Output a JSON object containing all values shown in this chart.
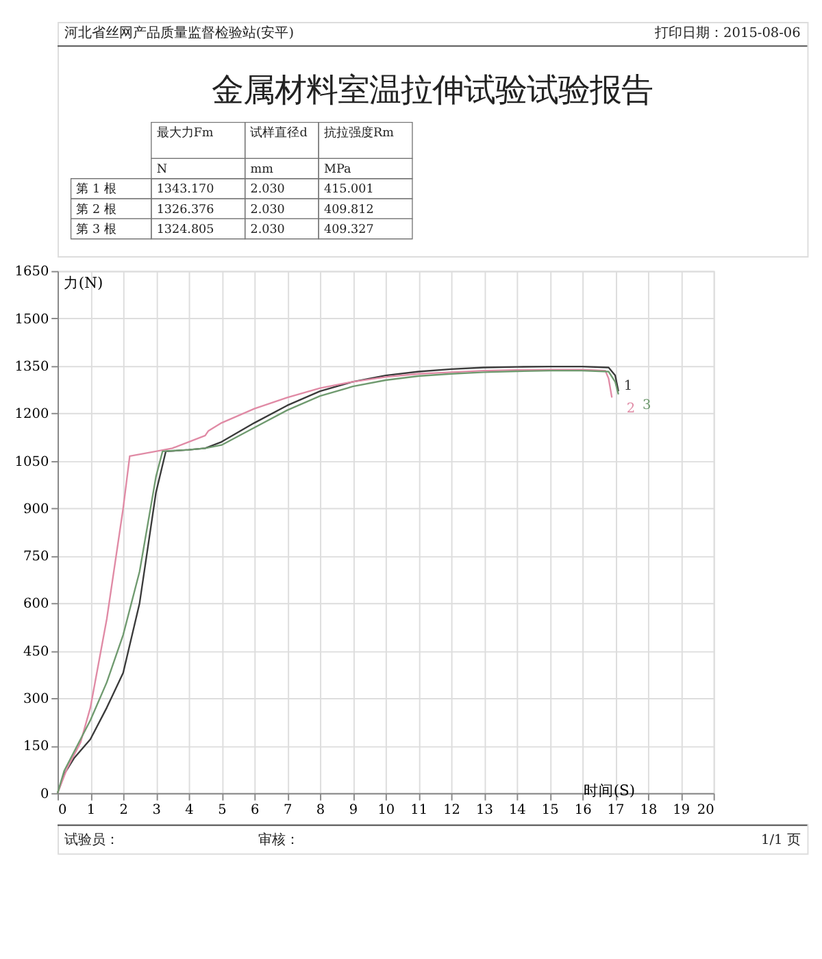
{
  "chart_data": {
    "type": "line",
    "title": "金属材料室温拉伸试验试验报告",
    "xlabel": "时间(S)",
    "ylabel": "力(N)",
    "xlim": [
      0,
      20
    ],
    "xticks": [
      0,
      1,
      2,
      3,
      4,
      5,
      6,
      7,
      8,
      9,
      10,
      11,
      12,
      13,
      14,
      15,
      16,
      17,
      18,
      19,
      20
    ],
    "ylim": [
      0,
      1650
    ],
    "yticks": [
      0,
      150,
      300,
      450,
      600,
      750,
      900,
      1050,
      1200,
      1350,
      1500,
      1650
    ],
    "grid": true,
    "legend": false,
    "marker": "none",
    "line_style": "solid",
    "series": [
      {
        "name": "1",
        "color": "#3a3a3a",
        "x": [
          0,
          0.2,
          0.5,
          1,
          1.5,
          2,
          2.5,
          3,
          3.3,
          4,
          4.5,
          5,
          6,
          7,
          8,
          9,
          10,
          11,
          12,
          13,
          14,
          15,
          16,
          16.8,
          17,
          17.1
        ],
        "values": [
          0,
          60,
          110,
          170,
          270,
          380,
          600,
          950,
          1080,
          1085,
          1090,
          1110,
          1170,
          1225,
          1270,
          1300,
          1320,
          1332,
          1340,
          1345,
          1347,
          1348,
          1348,
          1345,
          1320,
          1270
        ]
      },
      {
        "name": "2",
        "color": "#e08aa5",
        "x": [
          0,
          0.3,
          0.7,
          1,
          1.5,
          2,
          2.2,
          3,
          3.5,
          4.5,
          4.6,
          5,
          6,
          7,
          8,
          9,
          10,
          11,
          12,
          13,
          14,
          15,
          16,
          16.7,
          16.8,
          16.9
        ],
        "values": [
          0,
          80,
          160,
          270,
          550,
          900,
          1065,
          1080,
          1090,
          1130,
          1145,
          1170,
          1215,
          1250,
          1280,
          1300,
          1315,
          1325,
          1330,
          1335,
          1337,
          1338,
          1338,
          1335,
          1310,
          1250
        ]
      },
      {
        "name": "3",
        "color": "#6f9a6f",
        "x": [
          0,
          0.2,
          0.5,
          1,
          1.5,
          2,
          2.5,
          3,
          3.2,
          4,
          4.5,
          5,
          6,
          7,
          8,
          9,
          10,
          11,
          12,
          13,
          14,
          15,
          16,
          16.8,
          17,
          17.1
        ],
        "values": [
          0,
          70,
          130,
          230,
          350,
          500,
          700,
          1000,
          1080,
          1085,
          1090,
          1100,
          1155,
          1210,
          1255,
          1285,
          1305,
          1318,
          1325,
          1330,
          1333,
          1335,
          1335,
          1332,
          1300,
          1260
        ]
      }
    ],
    "annotations": [
      "河北省丝网产品质量监督检验站(安平)",
      "打印日期：2015-08-06",
      "最大力Fm",
      "试样直径d",
      "抗拉强度Rm",
      "N",
      "mm",
      "MPa",
      "第 1 根",
      "1343.170",
      "2.030",
      "415.001",
      "第 2 根",
      "1326.376",
      "2.030",
      "409.812",
      "第 3 根",
      "1324.805",
      "2.030",
      "409.327",
      "试验员：",
      "审核：",
      "1/1 页"
    ]
  }
}
